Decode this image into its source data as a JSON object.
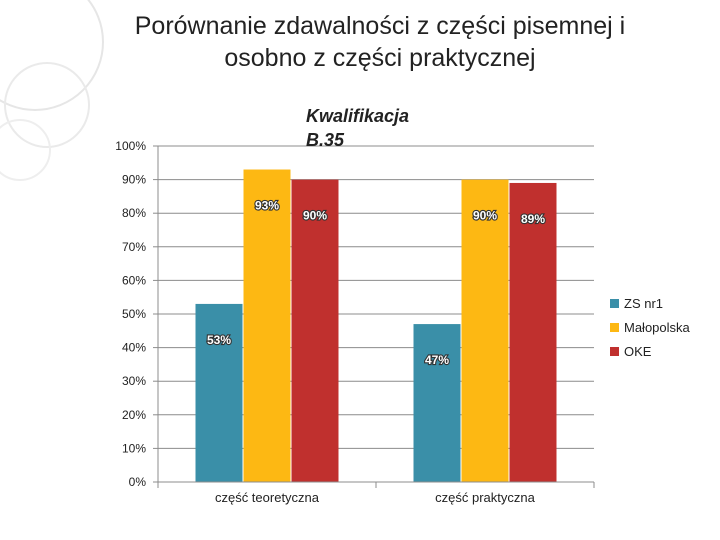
{
  "slide": {
    "title_line1": "Porównanie zdawalności z części pisemnej i",
    "title_line2": "osobno z części praktycznej"
  },
  "chart_data": {
    "type": "bar",
    "title_lines": [
      "Kwalifikacja",
      "B.35"
    ],
    "categories": [
      "część teoretyczna",
      "część praktyczna"
    ],
    "series": [
      {
        "name": "ZS nr1",
        "color": "#3A8FA8",
        "values": [
          53,
          47
        ]
      },
      {
        "name": "Małopolska",
        "color": "#FDB813",
        "values": [
          93,
          90
        ]
      },
      {
        "name": "OKE",
        "color": "#C0302E",
        "values": [
          90,
          89
        ]
      }
    ],
    "value_format": "percent",
    "ylim": [
      0,
      100
    ],
    "y_ticks": [
      "0%",
      "10%",
      "20%",
      "30%",
      "40%",
      "50%",
      "60%",
      "70%",
      "80%",
      "90%",
      "100%"
    ],
    "grid": true,
    "legend_position": "right"
  }
}
